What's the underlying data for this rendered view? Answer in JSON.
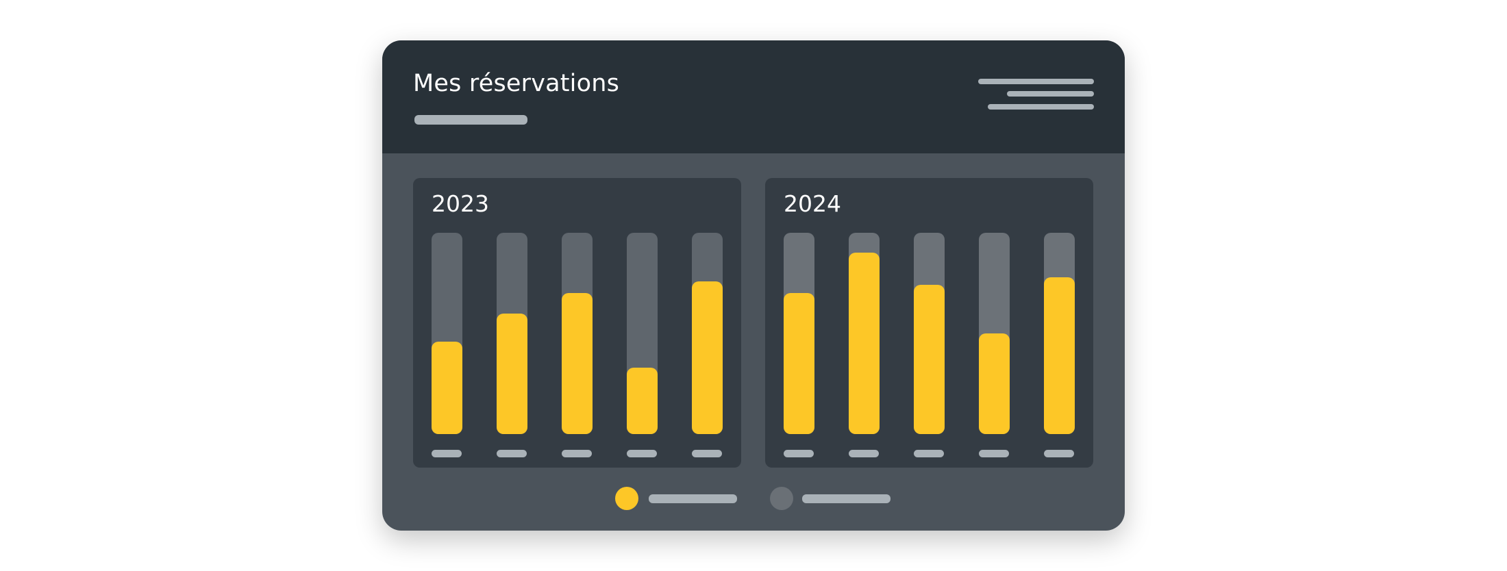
{
  "header": {
    "title": "Mes réservations"
  },
  "colors": {
    "accent": "#fdc727",
    "track": "#5f666d",
    "header": "#283138",
    "panel": "#343c44"
  },
  "chart_data": [
    {
      "type": "bar",
      "title": "2023",
      "value_scale": "fraction of track",
      "values": [
        0.46,
        0.6,
        0.7,
        0.33,
        0.76
      ],
      "ylim": [
        0,
        1
      ]
    },
    {
      "type": "bar",
      "title": "2024",
      "value_scale": "fraction of track",
      "values": [
        0.7,
        0.9,
        0.74,
        0.5,
        0.78
      ],
      "ylim": [
        0,
        1
      ]
    }
  ],
  "legend": {
    "series_colors": [
      "#fdc727",
      "#6a7076"
    ]
  }
}
